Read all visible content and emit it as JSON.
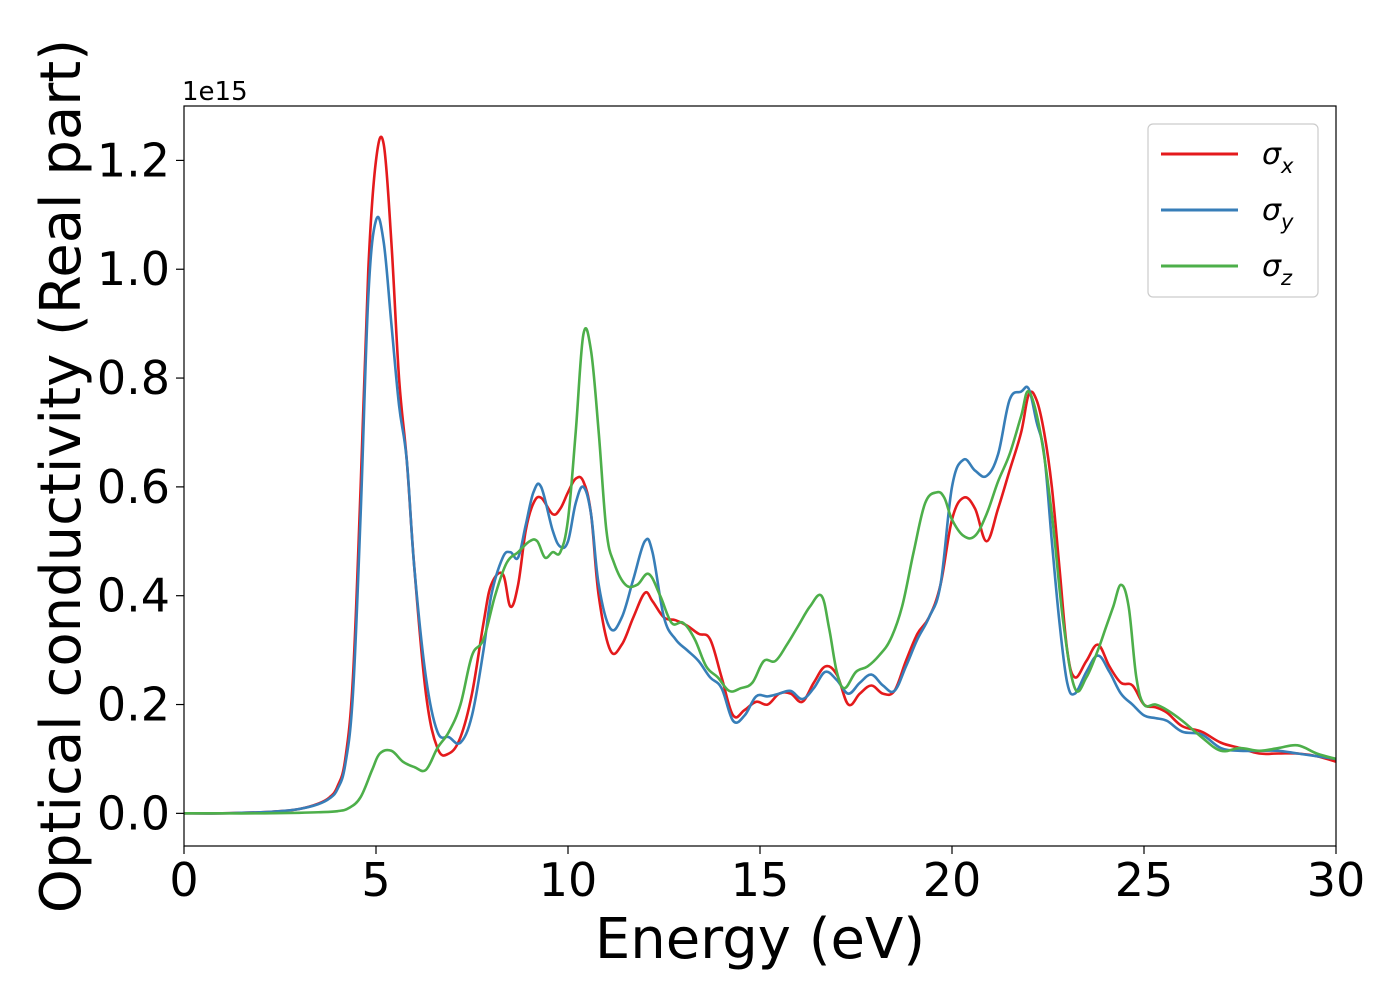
{
  "chart_data": {
    "type": "line",
    "xlabel": "Energy (eV)",
    "ylabel": "Optical conductivity (Real part)",
    "y_offset_text": "1e15",
    "y_scale_factor": 1000000000000000.0,
    "xlim": [
      0,
      30
    ],
    "ylim": [
      -0.06,
      1.3
    ],
    "xticks": [
      0,
      5,
      10,
      15,
      20,
      25,
      30
    ],
    "yticks": [
      0.0,
      0.2,
      0.4,
      0.6,
      0.8,
      1.0,
      1.2
    ],
    "grid": false,
    "legend_position": "top-right",
    "series": [
      {
        "name": "σ",
        "name_subscript": "x",
        "color": "#e41a1c",
        "x": [
          0,
          1,
          2,
          2.5,
          3,
          3.5,
          3.8,
          4.0,
          4.2,
          4.4,
          4.6,
          4.8,
          5.0,
          5.2,
          5.4,
          5.6,
          5.8,
          6.0,
          6.3,
          6.6,
          6.9,
          7.2,
          7.5,
          7.8,
          8.0,
          8.3,
          8.5,
          8.7,
          8.9,
          9.1,
          9.3,
          9.6,
          9.8,
          10.0,
          10.2,
          10.4,
          10.6,
          10.8,
          11.1,
          11.4,
          11.7,
          12.0,
          12.2,
          12.5,
          12.8,
          13.1,
          13.4,
          13.7,
          14.0,
          14.3,
          14.6,
          14.9,
          15.2,
          15.5,
          15.8,
          16.1,
          16.4,
          16.7,
          17.0,
          17.3,
          17.6,
          17.9,
          18.2,
          18.5,
          18.8,
          19.1,
          19.4,
          19.7,
          20.0,
          20.3,
          20.6,
          20.9,
          21.2,
          21.5,
          21.8,
          22.0,
          22.2,
          22.4,
          22.6,
          22.8,
          23.0,
          23.2,
          23.5,
          23.8,
          24.1,
          24.4,
          24.7,
          25.0,
          25.3,
          25.6,
          26.0,
          26.5,
          27.0,
          27.5,
          28.0,
          28.5,
          29.0,
          29.5,
          30.0
        ],
        "values": [
          0.0,
          0.0,
          0.002,
          0.004,
          0.008,
          0.018,
          0.03,
          0.05,
          0.1,
          0.25,
          0.6,
          1.0,
          1.2,
          1.23,
          1.05,
          0.8,
          0.65,
          0.45,
          0.22,
          0.12,
          0.11,
          0.14,
          0.22,
          0.35,
          0.42,
          0.44,
          0.38,
          0.42,
          0.52,
          0.57,
          0.58,
          0.55,
          0.56,
          0.59,
          0.615,
          0.61,
          0.55,
          0.4,
          0.3,
          0.31,
          0.36,
          0.405,
          0.39,
          0.36,
          0.355,
          0.345,
          0.33,
          0.32,
          0.25,
          0.18,
          0.19,
          0.205,
          0.2,
          0.22,
          0.22,
          0.205,
          0.24,
          0.27,
          0.255,
          0.2,
          0.22,
          0.235,
          0.22,
          0.225,
          0.28,
          0.33,
          0.36,
          0.42,
          0.54,
          0.58,
          0.56,
          0.5,
          0.56,
          0.63,
          0.7,
          0.77,
          0.76,
          0.7,
          0.6,
          0.45,
          0.3,
          0.25,
          0.28,
          0.31,
          0.27,
          0.24,
          0.235,
          0.2,
          0.195,
          0.185,
          0.16,
          0.15,
          0.13,
          0.12,
          0.11,
          0.11,
          0.11,
          0.105,
          0.095
        ]
      },
      {
        "name": "σ",
        "name_subscript": "y",
        "color": "#377eb8",
        "x": [
          0,
          1,
          2,
          2.5,
          3,
          3.5,
          3.8,
          4.0,
          4.2,
          4.4,
          4.6,
          4.8,
          5.0,
          5.2,
          5.4,
          5.6,
          5.8,
          6.0,
          6.3,
          6.6,
          6.9,
          7.2,
          7.5,
          7.8,
          8.0,
          8.3,
          8.5,
          8.7,
          8.9,
          9.1,
          9.3,
          9.6,
          9.8,
          10.0,
          10.2,
          10.4,
          10.6,
          10.8,
          11.1,
          11.4,
          11.7,
          12.0,
          12.2,
          12.5,
          12.8,
          13.1,
          13.4,
          13.7,
          14.0,
          14.3,
          14.6,
          14.9,
          15.2,
          15.5,
          15.8,
          16.1,
          16.4,
          16.7,
          17.0,
          17.3,
          17.6,
          17.9,
          18.2,
          18.5,
          18.8,
          19.1,
          19.4,
          19.7,
          20.0,
          20.3,
          20.6,
          20.9,
          21.2,
          21.5,
          21.8,
          22.0,
          22.2,
          22.4,
          22.6,
          22.8,
          23.0,
          23.2,
          23.5,
          23.8,
          24.1,
          24.4,
          24.7,
          25.0,
          25.3,
          25.6,
          26.0,
          26.5,
          27.0,
          27.5,
          28.0,
          28.5,
          29.0,
          29.5,
          30.0
        ],
        "values": [
          0.0,
          0.0,
          0.002,
          0.004,
          0.008,
          0.017,
          0.028,
          0.045,
          0.09,
          0.22,
          0.55,
          0.95,
          1.09,
          1.05,
          0.9,
          0.75,
          0.65,
          0.45,
          0.25,
          0.15,
          0.14,
          0.13,
          0.18,
          0.3,
          0.4,
          0.47,
          0.48,
          0.47,
          0.53,
          0.59,
          0.6,
          0.52,
          0.49,
          0.5,
          0.57,
          0.6,
          0.55,
          0.42,
          0.34,
          0.36,
          0.43,
          0.5,
          0.48,
          0.36,
          0.32,
          0.3,
          0.28,
          0.25,
          0.23,
          0.17,
          0.18,
          0.215,
          0.215,
          0.22,
          0.225,
          0.21,
          0.23,
          0.26,
          0.245,
          0.22,
          0.24,
          0.255,
          0.235,
          0.225,
          0.27,
          0.32,
          0.36,
          0.42,
          0.6,
          0.65,
          0.63,
          0.62,
          0.66,
          0.76,
          0.775,
          0.78,
          0.72,
          0.66,
          0.5,
          0.35,
          0.24,
          0.22,
          0.26,
          0.29,
          0.26,
          0.22,
          0.2,
          0.18,
          0.175,
          0.17,
          0.15,
          0.145,
          0.12,
          0.115,
          0.115,
          0.115,
          0.11,
          0.105,
          0.1
        ]
      },
      {
        "name": "σ",
        "name_subscript": "z",
        "color": "#4daf4a",
        "x": [
          0,
          1,
          2,
          3,
          3.5,
          4.0,
          4.3,
          4.6,
          4.9,
          5.1,
          5.4,
          5.7,
          6.0,
          6.3,
          6.6,
          6.9,
          7.2,
          7.5,
          7.8,
          8.1,
          8.4,
          8.7,
          9.0,
          9.2,
          9.4,
          9.6,
          9.8,
          10.0,
          10.2,
          10.4,
          10.6,
          10.8,
          11.0,
          11.2,
          11.5,
          11.8,
          12.1,
          12.4,
          12.7,
          13.0,
          13.3,
          13.6,
          13.9,
          14.2,
          14.5,
          14.8,
          15.1,
          15.4,
          15.7,
          16.0,
          16.3,
          16.6,
          16.8,
          17.0,
          17.2,
          17.5,
          17.8,
          18.1,
          18.4,
          18.7,
          19.0,
          19.3,
          19.6,
          19.8,
          20.0,
          20.3,
          20.6,
          20.9,
          21.2,
          21.5,
          21.8,
          22.0,
          22.3,
          22.6,
          22.9,
          23.2,
          23.5,
          23.8,
          24.0,
          24.2,
          24.4,
          24.6,
          24.8,
          25.0,
          25.3,
          25.6,
          26.0,
          26.5,
          27.0,
          27.5,
          28.0,
          28.5,
          29.0,
          29.5,
          30.0
        ],
        "values": [
          0.0,
          0.0,
          0.0,
          0.001,
          0.002,
          0.004,
          0.01,
          0.03,
          0.08,
          0.11,
          0.115,
          0.095,
          0.085,
          0.08,
          0.12,
          0.15,
          0.2,
          0.29,
          0.32,
          0.4,
          0.46,
          0.48,
          0.5,
          0.5,
          0.47,
          0.48,
          0.48,
          0.54,
          0.7,
          0.88,
          0.85,
          0.7,
          0.52,
          0.46,
          0.42,
          0.42,
          0.44,
          0.4,
          0.35,
          0.35,
          0.32,
          0.27,
          0.25,
          0.225,
          0.23,
          0.24,
          0.28,
          0.28,
          0.31,
          0.345,
          0.38,
          0.4,
          0.34,
          0.26,
          0.23,
          0.26,
          0.27,
          0.29,
          0.32,
          0.38,
          0.48,
          0.57,
          0.59,
          0.58,
          0.54,
          0.51,
          0.51,
          0.55,
          0.61,
          0.66,
          0.73,
          0.775,
          0.7,
          0.55,
          0.35,
          0.23,
          0.25,
          0.3,
          0.34,
          0.38,
          0.42,
          0.38,
          0.25,
          0.2,
          0.2,
          0.19,
          0.17,
          0.14,
          0.115,
          0.12,
          0.115,
          0.12,
          0.125,
          0.11,
          0.1
        ]
      }
    ]
  }
}
